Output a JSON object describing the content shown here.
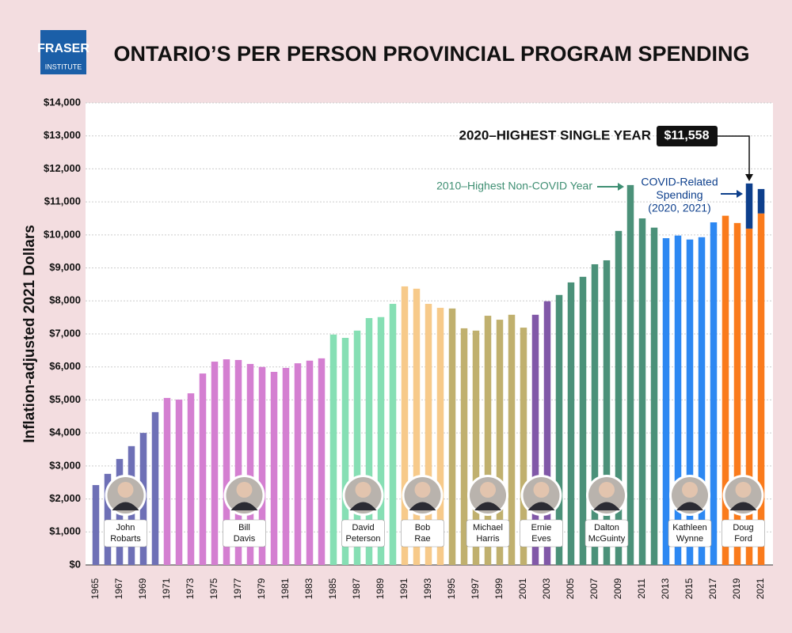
{
  "logo": {
    "lines": [
      "FRASER",
      "INSTITUTE"
    ]
  },
  "chart_data": {
    "type": "bar",
    "title": "ONTARIO’S PER PERSON PROVINCIAL PROGRAM SPENDING",
    "y_label": "Inflation-adjusted 2021 Dollars",
    "categories": [
      "1965",
      null,
      "1967",
      null,
      "1969",
      null,
      "1971",
      null,
      "1973",
      null,
      "1975",
      null,
      "1977",
      null,
      "1979",
      null,
      "1981",
      null,
      "1983",
      null,
      "1985",
      null,
      "1987",
      null,
      "1989",
      null,
      "1991",
      null,
      "1993",
      null,
      "1995",
      null,
      "1997",
      null,
      "1999",
      null,
      "2001",
      null,
      "2003",
      null,
      "2005",
      null,
      "2007",
      null,
      "2009",
      null,
      "2011",
      null,
      "2013",
      null,
      "2015",
      null,
      "2017",
      null,
      "2019",
      null,
      "2021"
    ],
    "series": [
      {
        "values": [
          2420,
          2760,
          3210,
          3600,
          4000,
          4630,
          5060,
          5010,
          5200,
          5800,
          6160,
          6230,
          6210,
          6090,
          6000,
          5850,
          5970,
          6110,
          6190,
          6260,
          6980,
          6880,
          7100,
          7480,
          7510,
          7910,
          8440,
          8370,
          7910,
          7790,
          7770,
          7170,
          7100,
          7550,
          7430,
          7580,
          7190,
          7580,
          7990,
          8180,
          8560,
          8730,
          9110,
          9230,
          10120,
          11510,
          10500,
          10220,
          9900,
          9980,
          9860,
          9930,
          10380,
          10580,
          10360,
          10190,
          10650
        ],
        "colors": [
          "#6e70b6",
          "#6e70b6",
          "#6e70b6",
          "#6e70b6",
          "#6e70b6",
          "#6e70b6",
          "#d47fd1",
          "#d47fd1",
          "#d47fd1",
          "#d47fd1",
          "#d47fd1",
          "#d47fd1",
          "#d47fd1",
          "#d47fd1",
          "#d47fd1",
          "#d47fd1",
          "#d47fd1",
          "#d47fd1",
          "#d47fd1",
          "#d47fd1",
          "#86dfb4",
          "#86dfb4",
          "#86dfb4",
          "#86dfb4",
          "#86dfb4",
          "#86dfb4",
          "#f7ca8a",
          "#f7ca8a",
          "#f7ca8a",
          "#f7ca8a",
          "#c0b06e",
          "#c0b06e",
          "#c0b06e",
          "#c0b06e",
          "#c0b06e",
          "#c0b06e",
          "#c0b06e",
          "#8158a8",
          "#8158a8",
          "#4b9179",
          "#4b9179",
          "#4b9179",
          "#4b9179",
          "#4b9179",
          "#4b9179",
          "#4b9179",
          "#4b9179",
          "#4b9179",
          "#2d88f2",
          "#2d88f2",
          "#2d88f2",
          "#2d88f2",
          "#2d88f2",
          "#fa7b1c",
          "#fa7b1c",
          "#fa7b1c",
          "#fa7b1c"
        ]
      },
      {
        "color": "#0d3f8c",
        "values": [
          null,
          null,
          null,
          null,
          null,
          null,
          null,
          null,
          null,
          null,
          null,
          null,
          null,
          null,
          null,
          null,
          null,
          null,
          null,
          null,
          null,
          null,
          null,
          null,
          null,
          null,
          null,
          null,
          null,
          null,
          null,
          null,
          null,
          null,
          null,
          null,
          null,
          null,
          null,
          null,
          null,
          null,
          null,
          null,
          null,
          null,
          null,
          null,
          null,
          null,
          null,
          null,
          null,
          null,
          null,
          1368,
          740
        ]
      }
    ],
    "ylim": [
      0,
      14000
    ],
    "yticks": [
      {
        "value": 0,
        "label": "$0"
      },
      {
        "value": 1000,
        "label": "$1,000"
      },
      {
        "value": 2000,
        "label": "$2,000"
      },
      {
        "value": 3000,
        "label": "$3,000"
      },
      {
        "value": 4000,
        "label": "$4,000"
      },
      {
        "value": 5000,
        "label": "$5,000"
      },
      {
        "value": 6000,
        "label": "$6,000"
      },
      {
        "value": 7000,
        "label": "$7,000"
      },
      {
        "value": 8000,
        "label": "$8,000"
      },
      {
        "value": 9000,
        "label": "$9,000"
      },
      {
        "value": 10000,
        "label": "$10,000"
      },
      {
        "value": 11000,
        "label": "$11,000"
      },
      {
        "value": 12000,
        "label": "$12,000"
      },
      {
        "value": 13000,
        "label": "$13,000"
      },
      {
        "value": 14000,
        "label": "$14,000"
      }
    ],
    "grid": true,
    "premiers": [
      {
        "lines": [
          "John",
          "Robarts"
        ],
        "color": "#6e70b6"
      },
      {
        "lines": [
          "Bill",
          "Davis"
        ],
        "color": "#d47fd1"
      },
      {
        "lines": [
          "David",
          "Peterson"
        ],
        "color": "#86dfb4"
      },
      {
        "lines": [
          "Bob",
          "Rae"
        ],
        "color": "#f7ca8a"
      },
      {
        "lines": [
          "Michael",
          "Harris"
        ],
        "color": "#c0b06e"
      },
      {
        "lines": [
          "Ernie",
          "Eves"
        ],
        "color": "#8158a8"
      },
      {
        "lines": [
          "Dalton",
          "McGuinty"
        ],
        "color": "#4b9179"
      },
      {
        "lines": [
          "Kathleen",
          "Wynne"
        ],
        "color": "#2d88f2"
      },
      {
        "lines": [
          "Doug",
          "Ford"
        ],
        "color": "#fa7b1c"
      }
    ],
    "annotations": {
      "peak": "2020–HIGHEST SINGLE YEAR",
      "peak_value": "$11,558",
      "non_covid": "2010–Highest Non-COVID Year",
      "covid": [
        "COVID-Related",
        "Spending",
        "(2020, 2021)"
      ]
    }
  }
}
